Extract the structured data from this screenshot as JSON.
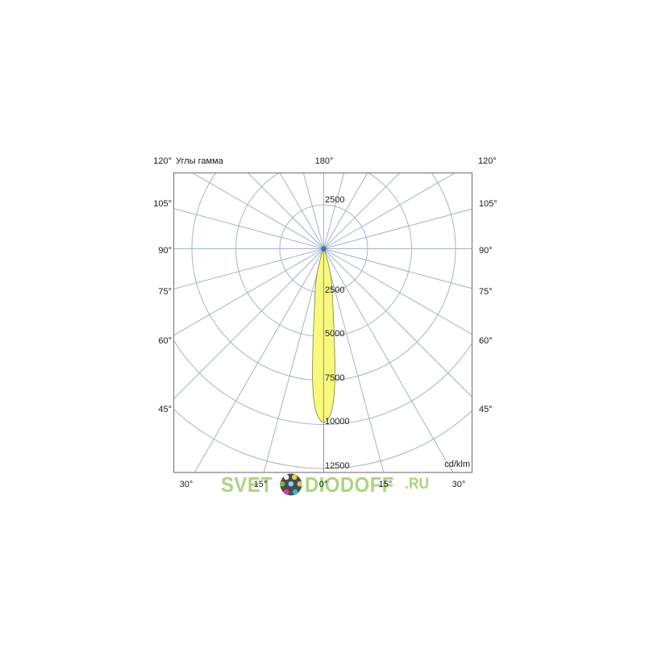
{
  "chart": {
    "title": "Углы гамма",
    "unit_label": "cd/klm",
    "angle_labels": {
      "top": [
        "120°",
        "180°",
        "120°"
      ],
      "left": [
        "105°",
        "90°",
        "75°",
        "60°",
        "45°"
      ],
      "right": [
        "105°",
        "90°",
        "75°",
        "60°",
        "45°"
      ],
      "bottom": [
        "30°",
        "15°",
        "0°",
        "15°",
        "30°"
      ]
    },
    "ring_labels": {
      "upper": "2500",
      "lower": [
        "2500",
        "5000",
        "7500",
        "10000",
        "12500"
      ]
    },
    "colors": {
      "grid_line": "#a3b3cb",
      "border": "#7e7e7e",
      "beam_fill": "#f8f87d",
      "beam_outline": "#8e8e55",
      "axis_over_beam": "#939b74",
      "pole_dot": "#44639f",
      "label_text": "#1a1a1a"
    }
  },
  "chart_data": {
    "type": "polar_photometric",
    "title": "Углы гамма",
    "unit": "cd/klm",
    "angle_grid_step_deg": 15,
    "gamma_angle_labels_deg": [
      0,
      15,
      30,
      45,
      60,
      75,
      90,
      105,
      120,
      180
    ],
    "radial_ticks_cd_klm": [
      2500,
      5000,
      7500,
      10000,
      12500
    ],
    "radial_max_cd_klm": 12500,
    "grid": true,
    "series": [
      {
        "name": "luminous-intensity-lobe",
        "peak_cd_klm": 9900,
        "peak_gamma_deg": 0,
        "points_gamma_deg_vs_cd_klm": [
          [
            0,
            9900
          ],
          [
            1,
            9800
          ],
          [
            2,
            9550
          ],
          [
            3,
            9150
          ],
          [
            4,
            8450
          ],
          [
            5,
            7350
          ],
          [
            6,
            5950
          ],
          [
            7,
            4850
          ],
          [
            8,
            3950
          ],
          [
            9,
            3350
          ],
          [
            10,
            2850
          ],
          [
            12,
            2300
          ],
          [
            14,
            1750
          ],
          [
            16,
            1150
          ],
          [
            18,
            620
          ],
          [
            20,
            270
          ],
          [
            22,
            90
          ],
          [
            24,
            0
          ]
        ],
        "symmetric": true
      }
    ]
  },
  "watermark": {
    "text_left": "SVET",
    "text_right": "DIODOFF",
    "suffix": ".RU",
    "text_color": "#aed37e",
    "logo_circle_color": "#4b4b4b",
    "logo_dot_colors": [
      "#f2f2f2",
      "#e9d83b",
      "#7cb83d",
      "#86d7f5",
      "#b5dc5a",
      "#de3f97",
      "#2fbcd6"
    ]
  }
}
